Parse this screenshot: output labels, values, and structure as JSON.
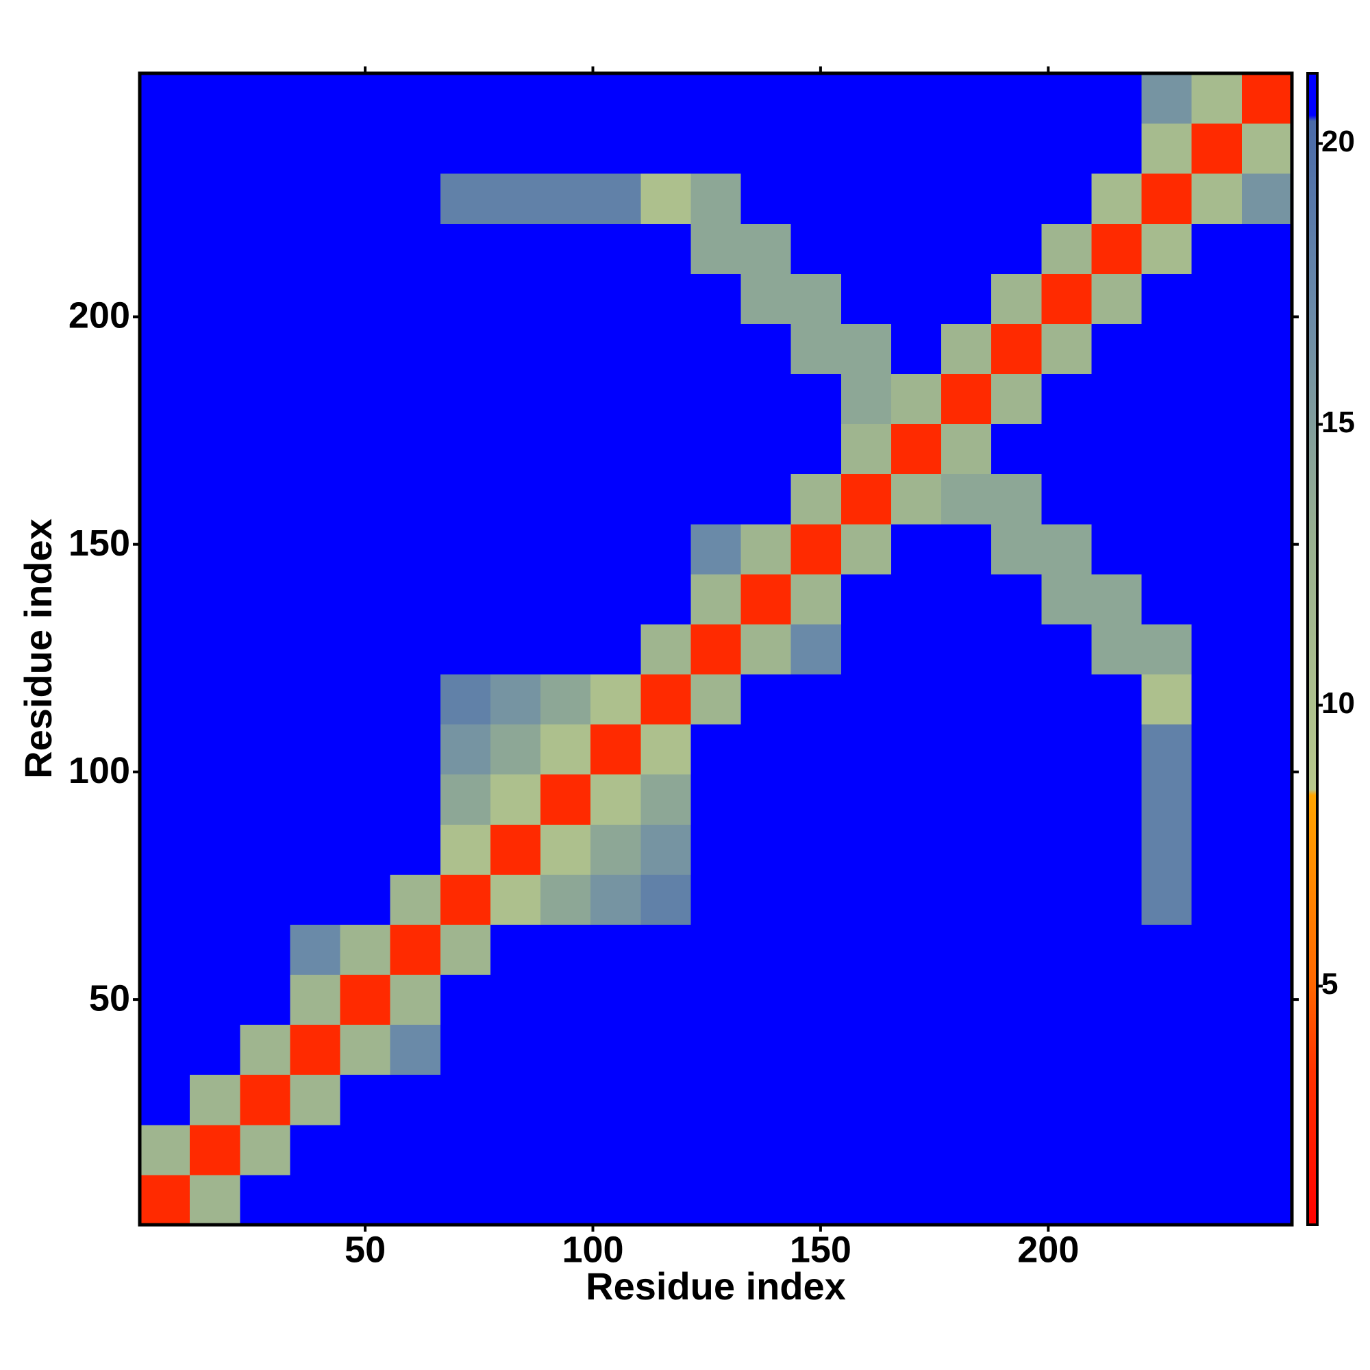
{
  "chart_data": {
    "type": "heatmap",
    "xlabel": "Residue index",
    "ylabel": "Residue index",
    "xlim": [
      0.5,
      253.5
    ],
    "ylim": [
      0.5,
      253.5
    ],
    "xticks": [
      50,
      100,
      150,
      200
    ],
    "yticks": [
      50,
      100,
      150,
      200
    ],
    "xbins": [
      0.5,
      11.5,
      22.5,
      33.5,
      44.5,
      55.5,
      66.5,
      77.5,
      88.5,
      99.5,
      110.5,
      121.5,
      132.5,
      143.5,
      154.5,
      165.5,
      176.5,
      187.5,
      198.5,
      209.5,
      220.5,
      231.5,
      242.5,
      253.5
    ],
    "ybins": [
      0.5,
      11.5,
      22.5,
      33.5,
      44.5,
      55.5,
      66.5,
      77.5,
      88.5,
      99.5,
      110.5,
      121.5,
      132.5,
      143.5,
      154.5,
      165.5,
      176.5,
      187.5,
      198.5,
      209.5,
      220.5,
      231.5,
      242.5,
      253.5
    ],
    "z": [
      [
        3,
        12,
        21,
        21,
        21,
        21,
        21,
        21,
        21,
        21,
        21,
        21,
        21,
        21,
        21,
        21,
        21,
        21,
        21,
        21,
        21,
        21,
        21
      ],
      [
        12,
        3,
        12,
        21,
        21,
        21,
        21,
        21,
        21,
        21,
        21,
        21,
        21,
        21,
        21,
        21,
        21,
        21,
        21,
        21,
        21,
        21,
        21
      ],
      [
        21,
        12,
        3,
        12,
        21,
        21,
        21,
        21,
        21,
        21,
        21,
        21,
        21,
        21,
        21,
        21,
        21,
        21,
        21,
        21,
        21,
        21,
        21
      ],
      [
        21,
        21,
        12,
        3,
        12,
        17,
        21,
        21,
        21,
        21,
        21,
        21,
        21,
        21,
        21,
        21,
        21,
        21,
        21,
        21,
        21,
        21,
        21
      ],
      [
        21,
        21,
        21,
        12,
        3,
        12,
        21,
        21,
        21,
        21,
        21,
        21,
        21,
        21,
        21,
        21,
        21,
        21,
        21,
        21,
        21,
        21,
        21
      ],
      [
        21,
        21,
        21,
        17,
        12,
        3,
        12,
        21,
        21,
        21,
        21,
        21,
        21,
        21,
        21,
        21,
        21,
        21,
        21,
        21,
        21,
        21,
        21
      ],
      [
        21,
        21,
        21,
        21,
        21,
        12,
        3,
        10,
        14,
        16,
        18,
        21,
        21,
        21,
        21,
        21,
        21,
        21,
        21,
        21,
        18,
        21,
        21
      ],
      [
        21,
        21,
        21,
        21,
        21,
        21,
        10,
        3,
        10,
        14,
        16,
        21,
        21,
        21,
        21,
        21,
        21,
        21,
        21,
        21,
        18,
        21,
        21
      ],
      [
        21,
        21,
        21,
        21,
        21,
        21,
        14,
        10,
        3,
        10,
        14,
        21,
        21,
        21,
        21,
        21,
        21,
        21,
        21,
        21,
        18,
        21,
        21
      ],
      [
        21,
        21,
        21,
        21,
        21,
        21,
        16,
        14,
        10,
        3,
        10,
        21,
        21,
        21,
        21,
        21,
        21,
        21,
        21,
        21,
        18,
        21,
        21
      ],
      [
        21,
        21,
        21,
        21,
        21,
        21,
        18,
        16,
        14,
        10,
        3,
        12,
        21,
        21,
        21,
        21,
        21,
        21,
        21,
        21,
        10,
        21,
        21
      ],
      [
        21,
        21,
        21,
        21,
        21,
        21,
        21,
        21,
        21,
        21,
        12,
        3,
        12,
        17,
        21,
        21,
        21,
        21,
        21,
        14,
        14,
        21,
        21
      ],
      [
        21,
        21,
        21,
        21,
        21,
        21,
        21,
        21,
        21,
        21,
        21,
        12,
        3,
        12,
        21,
        21,
        21,
        21,
        14,
        14,
        21,
        21,
        21
      ],
      [
        21,
        21,
        21,
        21,
        21,
        21,
        21,
        21,
        21,
        21,
        21,
        17,
        12,
        3,
        12,
        21,
        21,
        14,
        14,
        21,
        21,
        21,
        21
      ],
      [
        21,
        21,
        21,
        21,
        21,
        21,
        21,
        21,
        21,
        21,
        21,
        21,
        21,
        12,
        3,
        12,
        14,
        14,
        21,
        21,
        21,
        21,
        21
      ],
      [
        21,
        21,
        21,
        21,
        21,
        21,
        21,
        21,
        21,
        21,
        21,
        21,
        21,
        21,
        12,
        3,
        12,
        21,
        21,
        21,
        21,
        21,
        21
      ],
      [
        21,
        21,
        21,
        21,
        21,
        21,
        21,
        21,
        21,
        21,
        21,
        21,
        21,
        21,
        14,
        12,
        3,
        12,
        21,
        21,
        21,
        21,
        21
      ],
      [
        21,
        21,
        21,
        21,
        21,
        21,
        21,
        21,
        21,
        21,
        21,
        21,
        21,
        14,
        14,
        21,
        12,
        3,
        12,
        21,
        21,
        21,
        21
      ],
      [
        21,
        21,
        21,
        21,
        21,
        21,
        21,
        21,
        21,
        21,
        21,
        21,
        14,
        14,
        21,
        21,
        21,
        12,
        3,
        12,
        21,
        21,
        21
      ],
      [
        21,
        21,
        21,
        21,
        21,
        21,
        21,
        21,
        21,
        21,
        21,
        14,
        14,
        21,
        21,
        21,
        21,
        21,
        12,
        3,
        11,
        21,
        21
      ],
      [
        21,
        21,
        21,
        21,
        21,
        21,
        18,
        18,
        18,
        18,
        10,
        14,
        21,
        21,
        21,
        21,
        21,
        21,
        21,
        11,
        3,
        11,
        16
      ],
      [
        21,
        21,
        21,
        21,
        21,
        21,
        21,
        21,
        21,
        21,
        21,
        21,
        21,
        21,
        21,
        21,
        21,
        21,
        21,
        21,
        11,
        3,
        11
      ],
      [
        21,
        21,
        21,
        21,
        21,
        21,
        21,
        21,
        21,
        21,
        21,
        21,
        21,
        21,
        21,
        21,
        21,
        21,
        21,
        21,
        16,
        11,
        3
      ]
    ],
    "colorscale": [
      {
        "value": 0.75,
        "color": "#ff0000"
      },
      {
        "value": 3.5,
        "color": "#ff3300"
      },
      {
        "value": 5,
        "color": "#ff6600"
      },
      {
        "value": 8.4,
        "color": "#ffa500"
      },
      {
        "value": 8.5,
        "color": "#b8c88c"
      },
      {
        "value": 13,
        "color": "#98b090"
      },
      {
        "value": 17,
        "color": "#6a8aa8"
      },
      {
        "value": 20.4,
        "color": "#4a6aa8"
      },
      {
        "value": 20.5,
        "color": "#0000ff"
      },
      {
        "value": 21.25,
        "color": "#0000ff"
      }
    ],
    "clim": [
      0.75,
      21.25
    ],
    "cticks": [
      5,
      10,
      15,
      20
    ]
  }
}
